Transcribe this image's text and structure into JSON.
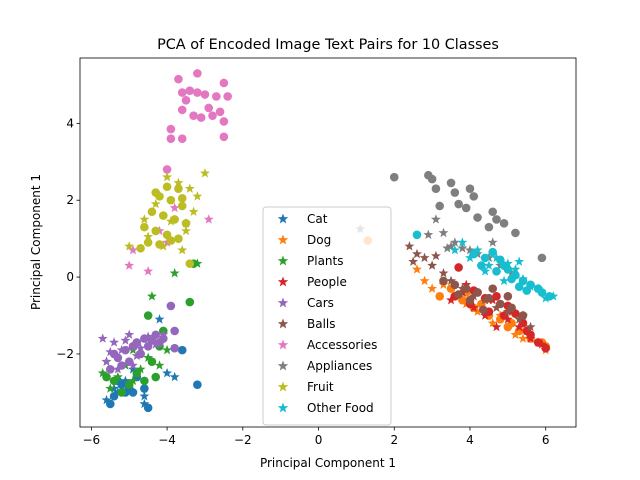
{
  "chart_data": {
    "type": "scatter",
    "title": "PCA of Encoded Image Text Pairs for 10 Classes",
    "xlabel": "Principal Component 1",
    "ylabel": "Principal Component 1",
    "xlim": [
      -6.3,
      6.8
    ],
    "ylim": [
      -3.9,
      5.7
    ],
    "xticks": [
      -6,
      -4,
      -2,
      0,
      2,
      4,
      6
    ],
    "yticks": [
      -2,
      0,
      2,
      4
    ],
    "grid": false,
    "legend_position": "center",
    "marker_legend": "star",
    "series": [
      {
        "name": "Cat",
        "color": "#1f77b4",
        "circles": [
          [
            -5.5,
            -3.3
          ],
          [
            -5.4,
            -3.1
          ],
          [
            -5.2,
            -2.8
          ],
          [
            -5.0,
            -2.9
          ],
          [
            -4.9,
            -3.0
          ],
          [
            -4.8,
            -2.6
          ],
          [
            -4.6,
            -2.9
          ],
          [
            -4.5,
            -3.4
          ],
          [
            -3.6,
            -1.9
          ],
          [
            -3.2,
            -2.8
          ],
          [
            -5.3,
            -2.7
          ],
          [
            -5.1,
            -3.0
          ]
        ],
        "stars": [
          [
            -5.6,
            -3.2
          ],
          [
            -5.3,
            -3.0
          ],
          [
            -5.1,
            -2.7
          ],
          [
            -4.9,
            -2.4
          ],
          [
            -4.6,
            -3.1
          ],
          [
            -4.2,
            -1.1
          ],
          [
            -4.0,
            -2.5
          ],
          [
            -3.8,
            -2.6
          ],
          [
            -4.6,
            -3.3
          ],
          [
            -5.4,
            -2.9
          ]
        ]
      },
      {
        "name": "Dog",
        "color": "#ff7f0e",
        "circles": [
          [
            1.3,
            0.95
          ],
          [
            3.2,
            -0.5
          ],
          [
            3.5,
            -0.3
          ],
          [
            3.8,
            -0.6
          ],
          [
            4.1,
            -0.8
          ],
          [
            4.5,
            -1.0
          ],
          [
            4.8,
            -1.1
          ],
          [
            5.0,
            -1.3
          ],
          [
            5.3,
            -1.4
          ],
          [
            5.6,
            -1.6
          ],
          [
            5.9,
            -1.7
          ],
          [
            6.0,
            -1.8
          ],
          [
            4.3,
            -0.7
          ],
          [
            3.9,
            -0.4
          ],
          [
            5.1,
            -1.2
          ]
        ],
        "stars": [
          [
            2.8,
            -0.1
          ],
          [
            3.0,
            -0.3
          ],
          [
            3.3,
            -0.2
          ],
          [
            3.6,
            -0.5
          ],
          [
            3.9,
            -0.7
          ],
          [
            4.2,
            -0.9
          ],
          [
            4.5,
            -0.6
          ],
          [
            4.8,
            -1.0
          ],
          [
            5.2,
            -1.5
          ],
          [
            5.5,
            -1.4
          ],
          [
            5.8,
            -1.7
          ],
          [
            6.0,
            -1.9
          ],
          [
            2.6,
            0.2
          ],
          [
            4.6,
            -1.2
          ],
          [
            5.4,
            -1.6
          ]
        ]
      },
      {
        "name": "Plants",
        "color": "#2ca02c",
        "circles": [
          [
            -5.4,
            -2.7
          ],
          [
            -5.2,
            -3.0
          ],
          [
            -5.0,
            -2.8
          ],
          [
            -4.8,
            -2.5
          ],
          [
            -4.6,
            -2.7
          ],
          [
            -4.4,
            -2.2
          ],
          [
            -4.3,
            -2.6
          ],
          [
            -4.2,
            -1.8
          ],
          [
            -4.1,
            -1.4
          ],
          [
            -4.5,
            -1.0
          ],
          [
            -3.4,
            -0.65
          ],
          [
            -3.3,
            0.35
          ],
          [
            -5.6,
            -2.6
          ],
          [
            -4.7,
            -2.0
          ]
        ],
        "stars": [
          [
            -5.7,
            -2.5
          ],
          [
            -5.5,
            -2.9
          ],
          [
            -5.3,
            -2.6
          ],
          [
            -5.1,
            -2.3
          ],
          [
            -4.9,
            -2.7
          ],
          [
            -4.7,
            -2.4
          ],
          [
            -4.5,
            -2.1
          ],
          [
            -4.4,
            -0.5
          ],
          [
            -4.2,
            -2.3
          ],
          [
            -4.0,
            -1.9
          ],
          [
            -3.8,
            0.1
          ],
          [
            -3.2,
            0.35
          ],
          [
            -4.9,
            -1.9
          ],
          [
            -5.6,
            -2.2
          ]
        ]
      },
      {
        "name": "People",
        "color": "#d62728",
        "circles": [
          [
            3.7,
            0.25
          ],
          [
            3.6,
            -0.5
          ],
          [
            4.0,
            -0.7
          ],
          [
            4.2,
            -0.4
          ],
          [
            4.5,
            -0.9
          ],
          [
            4.7,
            -0.5
          ],
          [
            4.9,
            -1.0
          ],
          [
            5.2,
            -0.95
          ],
          [
            5.4,
            -1.2
          ],
          [
            5.6,
            -1.5
          ],
          [
            5.8,
            -1.7
          ],
          [
            6.0,
            -1.85
          ],
          [
            4.4,
            -0.55
          ],
          [
            5.0,
            -0.75
          ],
          [
            4.1,
            -0.35
          ],
          [
            5.5,
            -1.4
          ]
        ],
        "stars": [
          [
            3.5,
            -0.6
          ],
          [
            3.8,
            -0.4
          ],
          [
            4.1,
            -0.8
          ],
          [
            4.4,
            -1.0
          ],
          [
            4.7,
            -1.3
          ],
          [
            5.0,
            -1.1
          ],
          [
            5.3,
            -1.3
          ],
          [
            5.6,
            -1.6
          ],
          [
            5.9,
            -1.75
          ],
          [
            4.6,
            -0.6
          ],
          [
            5.1,
            -0.9
          ],
          [
            5.4,
            -1.0
          ],
          [
            3.9,
            -0.2
          ]
        ]
      },
      {
        "name": "Cars",
        "color": "#9467bd",
        "circles": [
          [
            -5.5,
            -2.4
          ],
          [
            -5.3,
            -2.1
          ],
          [
            -5.1,
            -1.9
          ],
          [
            -5.0,
            -2.2
          ],
          [
            -4.8,
            -1.7
          ],
          [
            -4.7,
            -2.0
          ],
          [
            -4.6,
            -1.6
          ],
          [
            -4.5,
            -1.8
          ],
          [
            -4.3,
            -1.5
          ],
          [
            -4.1,
            -1.6
          ],
          [
            -3.9,
            -0.75
          ],
          [
            -3.8,
            -1.4
          ],
          [
            -3.8,
            -1.85
          ],
          [
            -5.2,
            -2.3
          ],
          [
            -4.9,
            -1.8
          ],
          [
            -4.4,
            -1.65
          ],
          [
            -5.4,
            -2.0
          ],
          [
            -4.2,
            -1.7
          ]
        ],
        "stars": [
          [
            -5.7,
            -1.6
          ],
          [
            -5.6,
            -2.2
          ],
          [
            -5.4,
            -1.7
          ],
          [
            -5.2,
            -1.9
          ],
          [
            -5.0,
            -1.5
          ],
          [
            -4.9,
            -2.3
          ],
          [
            -4.7,
            -1.85
          ],
          [
            -4.5,
            -1.55
          ],
          [
            -4.3,
            -1.75
          ],
          [
            -4.1,
            -1.5
          ],
          [
            -5.3,
            -2.4
          ],
          [
            -5.5,
            -1.95
          ],
          [
            -4.8,
            -2.05
          ],
          [
            -5.1,
            -1.65
          ]
        ]
      },
      {
        "name": "Balls",
        "color": "#8c564b",
        "circles": [
          [
            3.3,
            -0.1
          ],
          [
            3.6,
            -0.2
          ],
          [
            3.9,
            -0.3
          ],
          [
            4.2,
            -0.4
          ],
          [
            4.5,
            -0.55
          ],
          [
            4.8,
            -0.7
          ],
          [
            5.1,
            -0.8
          ],
          [
            5.4,
            -1.0
          ],
          [
            4.0,
            -0.6
          ],
          [
            4.6,
            -0.3
          ],
          [
            5.0,
            -0.5
          ],
          [
            3.7,
            -0.45
          ],
          [
            4.35,
            -0.85
          ]
        ],
        "stars": [
          [
            2.4,
            0.8
          ],
          [
            2.6,
            0.6
          ],
          [
            2.8,
            0.5
          ],
          [
            3.0,
            0.3
          ],
          [
            3.3,
            0.1
          ],
          [
            3.5,
            -0.1
          ],
          [
            3.8,
            -0.3
          ],
          [
            4.1,
            -0.5
          ],
          [
            4.4,
            -0.6
          ],
          [
            4.7,
            -0.8
          ],
          [
            5.0,
            -0.9
          ],
          [
            5.3,
            -1.1
          ],
          [
            5.6,
            -1.3
          ],
          [
            2.5,
            0.4
          ],
          [
            3.1,
            0.55
          ]
        ]
      },
      {
        "name": "Accessories",
        "color": "#e377c2",
        "circles": [
          [
            -3.7,
            5.15
          ],
          [
            -3.2,
            5.3
          ],
          [
            -2.5,
            5.05
          ],
          [
            -3.6,
            4.8
          ],
          [
            -3.4,
            4.85
          ],
          [
            -3.2,
            4.8
          ],
          [
            -3.0,
            4.75
          ],
          [
            -2.7,
            4.7
          ],
          [
            -2.4,
            4.7
          ],
          [
            -3.6,
            4.35
          ],
          [
            -3.3,
            4.2
          ],
          [
            -3.1,
            4.15
          ],
          [
            -2.8,
            4.2
          ],
          [
            -2.6,
            4.3
          ],
          [
            -2.5,
            4.05
          ],
          [
            -3.9,
            3.85
          ],
          [
            -3.9,
            3.6
          ],
          [
            -3.6,
            3.6
          ],
          [
            -2.5,
            3.65
          ],
          [
            -4.0,
            2.8
          ],
          [
            -3.5,
            4.6
          ],
          [
            -2.9,
            4.4
          ]
        ],
        "stars": [
          [
            -4.9,
            0.7
          ],
          [
            -4.5,
            0.15
          ],
          [
            -5.0,
            0.3
          ],
          [
            -4.2,
            1.2
          ],
          [
            -3.5,
            1.4
          ],
          [
            -2.9,
            1.5
          ],
          [
            -3.8,
            1.8
          ],
          [
            -4.0,
            0.9
          ]
        ]
      },
      {
        "name": "Appliances",
        "color": "#7f7f7f",
        "circles": [
          [
            2.0,
            2.6
          ],
          [
            2.9,
            2.65
          ],
          [
            3.0,
            2.55
          ],
          [
            3.1,
            2.3
          ],
          [
            3.5,
            2.45
          ],
          [
            3.6,
            2.2
          ],
          [
            3.7,
            1.9
          ],
          [
            3.9,
            1.8
          ],
          [
            4.0,
            2.3
          ],
          [
            4.1,
            2.1
          ],
          [
            4.6,
            1.7
          ],
          [
            4.7,
            1.5
          ],
          [
            4.9,
            1.4
          ],
          [
            5.2,
            1.15
          ],
          [
            5.9,
            0.5
          ],
          [
            3.2,
            1.85
          ],
          [
            4.2,
            1.55
          ],
          [
            4.5,
            1.3
          ]
        ],
        "stars": [
          [
            1.1,
            1.25
          ],
          [
            2.9,
            1.1
          ],
          [
            3.1,
            1.5
          ],
          [
            3.4,
            0.75
          ],
          [
            3.5,
            0.8
          ],
          [
            3.6,
            0.9
          ],
          [
            3.8,
            0.75
          ],
          [
            4.0,
            0.7
          ],
          [
            4.2,
            0.6
          ],
          [
            4.5,
            0.5
          ],
          [
            4.8,
            0.3
          ],
          [
            5.1,
            0.1
          ],
          [
            3.3,
            1.15
          ],
          [
            4.6,
            0.9
          ]
        ]
      },
      {
        "name": "Fruit",
        "color": "#bcbd22",
        "circles": [
          [
            -4.0,
            2.35
          ],
          [
            -3.7,
            2.3
          ],
          [
            -4.2,
            2.1
          ],
          [
            -3.9,
            2.0
          ],
          [
            -3.6,
            1.85
          ],
          [
            -4.4,
            1.7
          ],
          [
            -4.1,
            1.6
          ],
          [
            -3.8,
            1.5
          ],
          [
            -3.5,
            1.4
          ],
          [
            -4.6,
            1.3
          ],
          [
            -4.3,
            1.2
          ],
          [
            -4.0,
            1.1
          ],
          [
            -3.7,
            1.0
          ],
          [
            -4.5,
            0.9
          ],
          [
            -4.2,
            0.85
          ],
          [
            -3.9,
            0.95
          ],
          [
            -3.4,
            0.35
          ],
          [
            -4.7,
            0.75
          ],
          [
            -3.6,
            2.05
          ],
          [
            -4.3,
            2.2
          ]
        ],
        "stars": [
          [
            -5.0,
            0.8
          ],
          [
            -4.6,
            1.5
          ],
          [
            -4.3,
            1.9
          ],
          [
            -4.0,
            2.6
          ],
          [
            -3.7,
            2.45
          ],
          [
            -3.4,
            2.3
          ],
          [
            -3.0,
            2.7
          ],
          [
            -3.2,
            2.1
          ],
          [
            -3.5,
            1.2
          ],
          [
            -3.9,
            1.45
          ],
          [
            -4.1,
            0.8
          ],
          [
            -3.6,
            0.7
          ],
          [
            -3.3,
            1.7
          ],
          [
            -4.5,
            1.05
          ]
        ]
      },
      {
        "name": "Other Food",
        "color": "#17becf",
        "circles": [
          [
            2.6,
            1.1
          ],
          [
            4.1,
            0.6
          ],
          [
            4.4,
            0.5
          ],
          [
            4.6,
            0.65
          ],
          [
            4.8,
            0.45
          ],
          [
            4.9,
            0.3
          ],
          [
            5.0,
            0.2
          ],
          [
            5.2,
            0.05
          ],
          [
            5.4,
            -0.1
          ],
          [
            5.6,
            -0.2
          ],
          [
            5.8,
            -0.3
          ],
          [
            6.1,
            -0.5
          ],
          [
            4.3,
            0.3
          ],
          [
            4.7,
            0.15
          ],
          [
            5.1,
            -0.05
          ],
          [
            5.5,
            -0.35
          ],
          [
            5.9,
            -0.4
          ],
          [
            5.3,
            -0.25
          ]
        ],
        "stars": [
          [
            3.6,
            0.7
          ],
          [
            3.8,
            0.9
          ],
          [
            4.0,
            0.5
          ],
          [
            4.2,
            0.7
          ],
          [
            4.5,
            0.3
          ],
          [
            4.7,
            0.5
          ],
          [
            5.0,
            0.35
          ],
          [
            5.2,
            0.2
          ],
          [
            5.4,
            -0.05
          ],
          [
            5.6,
            -0.25
          ],
          [
            5.8,
            -0.3
          ],
          [
            6.0,
            -0.55
          ],
          [
            6.2,
            -0.5
          ],
          [
            4.9,
            -0.1
          ],
          [
            5.3,
            0.4
          ],
          [
            4.4,
            0.15
          ]
        ]
      }
    ]
  }
}
